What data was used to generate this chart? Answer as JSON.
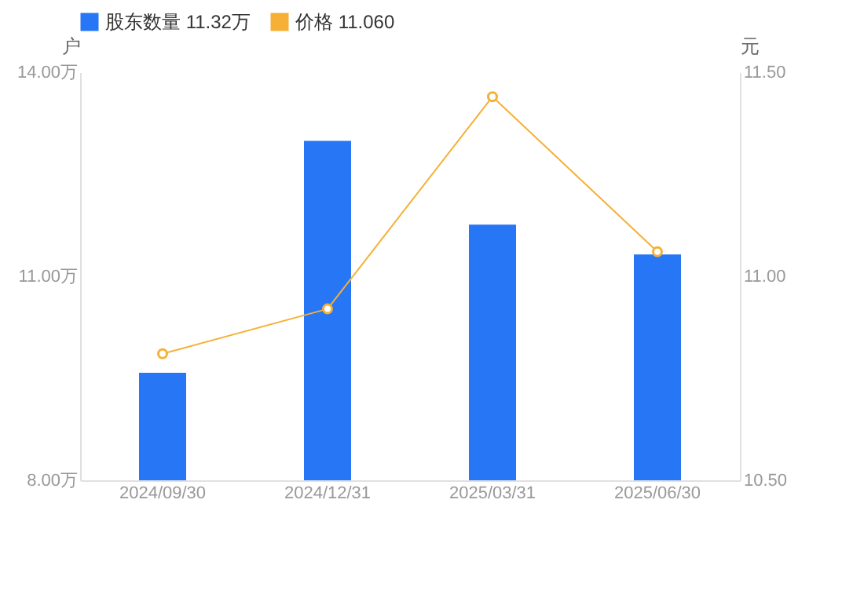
{
  "chart_data": {
    "type": "bar",
    "categories": [
      "2024/09/30",
      "2024/12/31",
      "2025/03/31",
      "2025/06/30"
    ],
    "ylabel": "户",
    "y2label": "元",
    "ylim": [
      8,
      14
    ],
    "yticks": [
      {
        "value": 8,
        "label": "8.00万"
      },
      {
        "value": 11,
        "label": "11.00万"
      },
      {
        "value": 14,
        "label": "14.00万"
      }
    ],
    "y2lim": [
      10.5,
      11.5
    ],
    "y2ticks": [
      {
        "value": 10.5,
        "label": "10.50"
      },
      {
        "value": 11,
        "label": "11.00"
      },
      {
        "value": 11.5,
        "label": "11.50"
      }
    ],
    "series": [
      {
        "name": "股东数量 11.32万",
        "color": "#2676f6",
        "values": [
          9.58,
          12.99,
          11.76,
          11.32
        ]
      },
      {
        "name": "价格 11.060",
        "type": "line",
        "axis": "y2",
        "color": "#f5b035",
        "values": [
          10.81,
          10.92,
          11.44,
          11.06
        ]
      }
    ],
    "marker": "circle",
    "legend": "top left",
    "grid": false
  }
}
